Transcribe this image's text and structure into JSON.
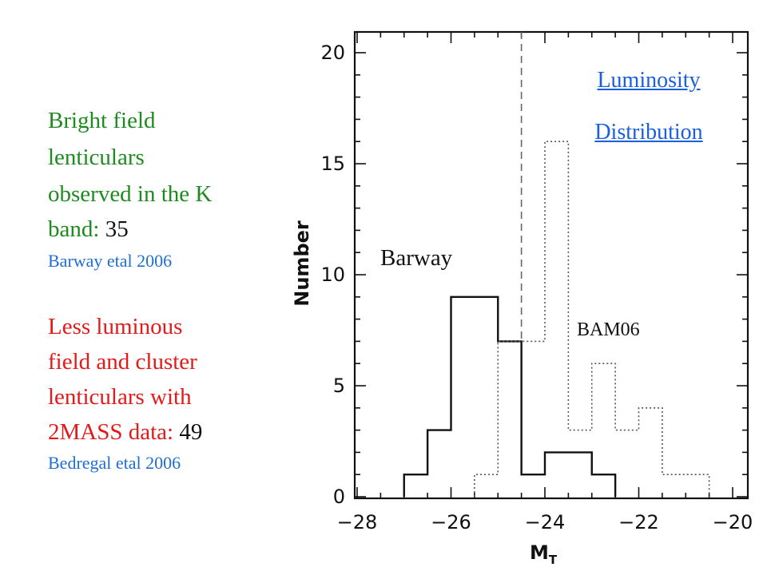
{
  "left_panel": {
    "group1": {
      "lines": [
        "Bright field",
        "lenticulars",
        "observed in the K"
      ],
      "last_line_prefix": "band: ",
      "count": "35",
      "citation": "Barway etal 2006",
      "color": "#1f8a1f"
    },
    "group2": {
      "lines": [
        "Less luminous",
        "field and cluster",
        "lenticulars with"
      ],
      "last_line_prefix": "2MASS data: ",
      "count": "49",
      "citation": "Bedregal etal 2006",
      "color": "#e41a1a"
    },
    "citation_color": "#1f6fd0"
  },
  "title_link": {
    "line1": "Luminosity",
    "line2": "Distribution",
    "color": "#1a5fe0"
  },
  "chart_data": {
    "type": "histogram",
    "xlabel": "M_T",
    "ylabel": "Number",
    "xlim": [
      -28,
      -20
    ],
    "ylim": [
      0,
      20.5
    ],
    "x_ticks": [
      -28,
      -26,
      -24,
      -22,
      -20
    ],
    "y_ticks": [
      0,
      5,
      10,
      15,
      20
    ],
    "bin_width": 0.5,
    "series": [
      {
        "name": "Barway",
        "style": "solid",
        "bins": [
          {
            "x0": -27.0,
            "x1": -26.5,
            "count": 1
          },
          {
            "x0": -26.5,
            "x1": -26.0,
            "count": 3
          },
          {
            "x0": -26.0,
            "x1": -25.5,
            "count": 9
          },
          {
            "x0": -25.5,
            "x1": -25.0,
            "count": 9
          },
          {
            "x0": -25.0,
            "x1": -24.5,
            "count": 7
          },
          {
            "x0": -24.5,
            "x1": -24.0,
            "count": 1
          },
          {
            "x0": -24.0,
            "x1": -23.5,
            "count": 2
          },
          {
            "x0": -23.5,
            "x1": -23.0,
            "count": 2
          },
          {
            "x0": -23.0,
            "x1": -22.5,
            "count": 1
          }
        ]
      },
      {
        "name": "BAM06",
        "style": "dotted",
        "bins": [
          {
            "x0": -25.5,
            "x1": -25.0,
            "count": 1
          },
          {
            "x0": -25.0,
            "x1": -24.5,
            "count": 7
          },
          {
            "x0": -24.5,
            "x1": -24.0,
            "count": 7
          },
          {
            "x0": -24.0,
            "x1": -23.5,
            "count": 16
          },
          {
            "x0": -23.5,
            "x1": -23.0,
            "count": 3
          },
          {
            "x0": -23.0,
            "x1": -22.5,
            "count": 6
          },
          {
            "x0": -22.5,
            "x1": -22.0,
            "count": 3
          },
          {
            "x0": -22.0,
            "x1": -21.5,
            "count": 4
          },
          {
            "x0": -21.5,
            "x1": -21.0,
            "count": 1
          },
          {
            "x0": -21.0,
            "x1": -20.5,
            "count": 1
          }
        ]
      }
    ],
    "reference_line": {
      "x": -24.5,
      "style": "dashed"
    },
    "annotations": [
      "Barway",
      "BAM06"
    ]
  }
}
